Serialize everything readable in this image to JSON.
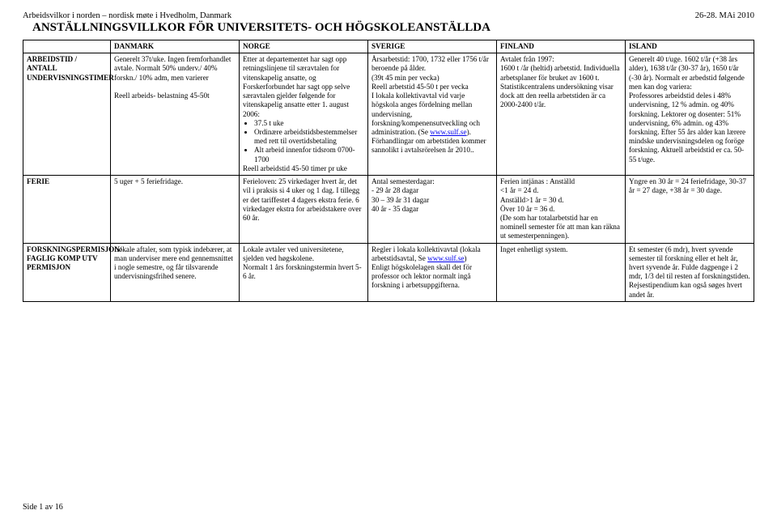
{
  "header": {
    "left": "Arbeidsvilkor i norden – nordisk møte i Hvedholm, Danmark",
    "right": "26-28. MAi 2010",
    "title": "ANSTÄLLNINGSVILLKOR FÖR UNIVERSITETS- OCH HÖGSKOLEANSTÄLLDA"
  },
  "countries": [
    "DANMARK",
    "NORGE",
    "SVERIGE",
    "FINLAND",
    "ISLAND"
  ],
  "rows": {
    "arbeidstid": {
      "label": "ARBEIDSTID / ANTALL UNDERVISNINGSTIMER",
      "danmark": "Generelt 37t/uke. Ingen fremforhandlet avtale. Normalt 50% underv./ 40% forskn./ 10% adm, men varierer\n\nReell arbeids- belastning 45-50t",
      "norge": {
        "pre": "Etter at departementet har sagt opp retningslinjene til særavtalen for vitenskapelig ansatte, og Forskerforbundet har sagt opp selve særavtalen gjelder følgende for vitenskapelig ansatte etter 1. august 2006:",
        "bullets": [
          "37.5 t uke",
          "Ordinære arbeidstids­bestemmelser med rett til overtidsbetaling",
          "Alt arbeid innenfor tidsrom 0700-1700"
        ],
        "post": "Reell arbeidstid 45-50 timer pr uke"
      },
      "sverige": {
        "pre": "Årsarbetstid: 1700, 1732 eller 1756 t/år beroende på ålder.\n(39t 45 min per vecka)\nReell arbetstid 45-50 t per vecka\nI lokala kollektivavtal vid varje högskola anges fördelning mellan undervisning, forskning/kompenensutveckling och administration. (Se ",
        "link": "www.sulf.se",
        "post": ").\nFörhandlingar om arbetstiden kommer sannolikt i avtalsrörelsen år 2010.."
      },
      "finland": "Avtalet från 1997:\n1600 t /år (heltid) arbetstid. Individuella arbetsplaner för bruket av 1600 t.\nStatistikcentralens undersökning visar dock att den reella arbetstiden är ca 2000-2400 t/år.",
      "island": "Generelt 40 t/uge. 1602 t/år (+38 års alder), 1638 t/år (30-37 år), 1650 t/år (-30 år). Normalt er arbedstid følgende men kan dog variera:\nProfessores arbeidstid deles i 48% undervisning, 12 % admin. og 40% forskning. Lektorer og dosenter: 51% undervisning, 6% admin. og 43% forskning. Efter 55 års alder kan lærere mindske undervisningsdelen og foröge forskning. Aktuell arbeidstid er ca. 50-55 t/uge."
    },
    "ferie": {
      "label": "FERIE",
      "danmark": "5 uger + 5 feriefridage.",
      "norge": "Ferieloven: 25 virkedager hvert år, det vil i praksis si 4 uker og 1 dag. I tillegg er det tariffestet 4 dagers ekstra ferie. 6 virkedager ekstra for arbeidstakere over 60 år.",
      "sverige": "Antal semesterdagar:\n- 29 år      28 dagar\n30 – 39 år   31 dagar\n40 år -      35 dagar",
      "finland": "Ferien intjänas : Anställd\n<1 år = 24 d.\nAnställd>1 år = 30 d.\nÖver 10 år = 36 d.\n(De som har totalarbetstid har en nominell semester för att man kan räkna ut semesterpenningen).",
      "island": "Yngre en 30 år = 24 feriefridage, 30-37 år = 27 dage, +38 år = 30 dage."
    },
    "forskning": {
      "label": "FORSKNINGSPERMISJON/\nFAGLIG KOMP UTV PERMISJON",
      "danmark": "Lokale aftaler, som typisk indebærer, at man underviser mere end gennemsnittet i nogle semestre, og får tilsvarende undervisningsfrihed senere.",
      "norge": "Lokale avtaler ved universitetene, sjelden ved høgskolene.\nNormalt 1 års forskningstermin hvert 5-6 år.",
      "sverige": {
        "pre": "Regler i lokala kollektivavtal (lokala arbetstidsavtal, Se ",
        "link": "www.sulf.se",
        "post": ")\nEnligt högskolelagen skall det för professor och lektor normalt ingå forskning i arbetsuppgifterna."
      },
      "finland": "Inget enhetligt system.",
      "island": "Et semester (6 mdr), hvert syvende semester til forskning eller et helt år, hvert syvende år. Fulde dagpenge i 2 mdr, 1/3 del til resten af forskningstiden.\nRejsestipendium kan også søges hvert andet år."
    }
  },
  "footer": "Side 1 av 16"
}
